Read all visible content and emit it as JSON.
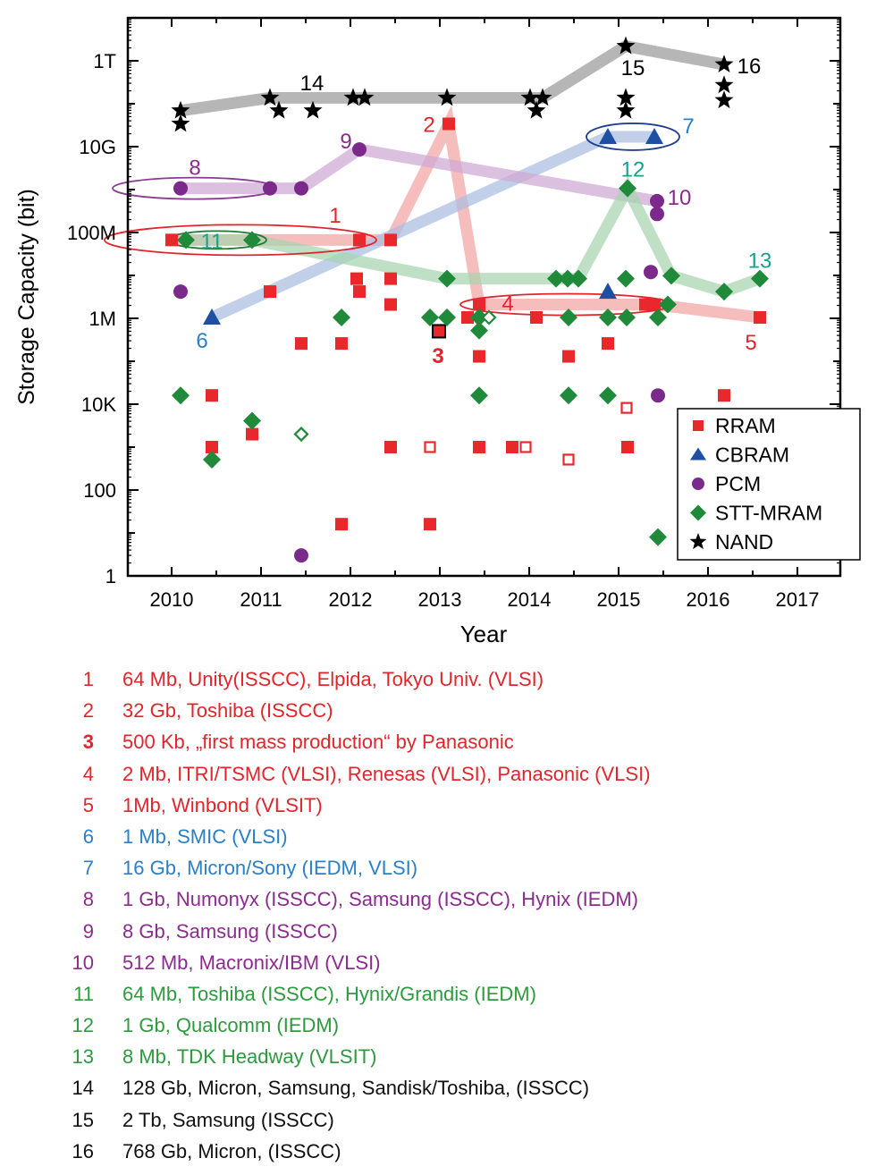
{
  "chart_data": {
    "type": "scatter",
    "xlabel": "Year",
    "ylabel": "Storage Capacity (bit)",
    "x_ticks": [
      "2010",
      "2011",
      "2012",
      "2013",
      "2014",
      "2015",
      "2016",
      "2017"
    ],
    "y_ticks": [
      {
        "v": 1,
        "label": "1"
      },
      {
        "v": 100,
        "label": "100"
      },
      {
        "v": 10000.0,
        "label": "10K"
      },
      {
        "v": 1000000.0,
        "label": "1M"
      },
      {
        "v": 100000000.0,
        "label": "100M"
      },
      {
        "v": 10000000000.0,
        "label": "10G"
      },
      {
        "v": 1000000000000.0,
        "label": "1T"
      }
    ],
    "xlim": [
      2009.53,
      2017.48
    ],
    "ylim": [
      1,
      11000000000000.0
    ],
    "y_scale": "log",
    "grid": false,
    "legend_position": "bottom-right",
    "series": [
      {
        "name": "RRAM",
        "marker": "square",
        "color": "#e8282b",
        "trend_color": "#f2a3a3",
        "points": [
          [
            2010.0,
            67000000.0
          ],
          [
            2012.1,
            67000000.0
          ],
          [
            2012.45,
            67000000.0
          ],
          [
            2013.1,
            34000000000.0
          ],
          [
            2011.1,
            4200000.0
          ],
          [
            2012.07,
            8400000.0
          ],
          [
            2012.1,
            4200000.0
          ],
          [
            2012.45,
            8400000.0
          ],
          [
            2012.45,
            2100000.0
          ],
          [
            2013.44,
            2100000.0
          ],
          [
            2013.31,
            1050000.0
          ],
          [
            2011.45,
            260000.0
          ],
          [
            2011.9,
            260000.0
          ],
          [
            2013.44,
            130000.0
          ],
          [
            2010.45,
            16000.0
          ],
          [
            2010.9,
            2000.0
          ],
          [
            2010.45,
            1000.0
          ],
          [
            2012.45,
            1000.0
          ],
          [
            2013.44,
            1000.0
          ],
          [
            2011.9,
            16
          ],
          [
            2012.89,
            16
          ],
          [
            2015.3,
            2100000.0
          ],
          [
            2015.4,
            2100000.0
          ],
          [
            2016.58,
            1050000.0
          ],
          [
            2014.08,
            1050000.0
          ],
          [
            2014.88,
            260000.0
          ],
          [
            2014.44,
            130000.0
          ],
          [
            2016.18,
            16000.0
          ],
          [
            2013.81,
            1000.0
          ],
          [
            2015.1,
            1000.0
          ]
        ],
        "open_points": [
          [
            2012.89,
            1000.0
          ],
          [
            2015.09,
            8200.0
          ],
          [
            2013.96,
            1000.0
          ],
          [
            2014.44,
            512
          ]
        ],
        "highlight_points": [
          [
            2012.99,
            500000.0
          ]
        ],
        "trend": [
          [
            2010.0,
            67000000.0
          ],
          [
            2012.45,
            67000000.0
          ],
          [
            2013.1,
            34000000000.0
          ],
          [
            2013.44,
            2100000.0
          ],
          [
            2015.4,
            2100000.0
          ],
          [
            2016.58,
            1050000.0
          ]
        ]
      },
      {
        "name": "CBRAM",
        "marker": "triangle",
        "color": "#1f4fa3",
        "trend_color": "#a9bde0",
        "points": [
          [
            2010.45,
            1050000.0
          ],
          [
            2014.88,
            17000000000.0
          ],
          [
            2015.4,
            17000000000.0
          ],
          [
            2014.88,
            4200000.0
          ]
        ],
        "open_points": [],
        "highlight_points": [],
        "trend": [
          [
            2010.45,
            1050000.0
          ],
          [
            2014.88,
            17000000000.0
          ],
          [
            2015.4,
            17000000000.0
          ]
        ]
      },
      {
        "name": "PCM",
        "marker": "circle",
        "color": "#7b2a8c",
        "trend_color": "#cfa8d4",
        "points": [
          [
            2010.1,
            1070000000.0
          ],
          [
            2011.1,
            1070000000.0
          ],
          [
            2011.45,
            1070000000.0
          ],
          [
            2012.1,
            8600000000.0
          ],
          [
            2010.1,
            4200000.0
          ],
          [
            2015.43,
            540000000.0
          ],
          [
            2015.43,
            270000000.0
          ],
          [
            2015.36,
            12000000.0
          ],
          [
            2015.44,
            16000.0
          ],
          [
            2011.45,
            3
          ]
        ],
        "open_points": [],
        "highlight_points": [],
        "trend": [
          [
            2010.1,
            1070000000.0
          ],
          [
            2011.45,
            1070000000.0
          ],
          [
            2012.1,
            8600000000.0
          ],
          [
            2015.43,
            540000000.0
          ]
        ]
      },
      {
        "name": "STT-MRAM",
        "marker": "diamond",
        "color": "#1e8a3a",
        "trend_color": "#a6d4ae",
        "points": [
          [
            2010.16,
            67000000.0
          ],
          [
            2010.9,
            67000000.0
          ],
          [
            2013.08,
            8400000.0
          ],
          [
            2014.3,
            8400000.0
          ],
          [
            2014.43,
            8400000.0
          ],
          [
            2014.55,
            8400000.0
          ],
          [
            2015.1,
            1070000000.0
          ],
          [
            2015.08,
            8400000.0
          ],
          [
            2015.59,
            9800000.0
          ],
          [
            2016.18,
            4200000.0
          ],
          [
            2016.58,
            8400000.0
          ],
          [
            2011.9,
            1050000.0
          ],
          [
            2012.89,
            1050000.0
          ],
          [
            2013.08,
            1050000.0
          ],
          [
            2013.44,
            1050000.0
          ],
          [
            2013.44,
            520000.0
          ],
          [
            2010.1,
            16000.0
          ],
          [
            2013.44,
            16000.0
          ],
          [
            2010.9,
            4100.0
          ],
          [
            2010.45,
            512
          ],
          [
            2014.44,
            1050000.0
          ],
          [
            2014.88,
            1050000.0
          ],
          [
            2015.09,
            1050000.0
          ],
          [
            2015.44,
            1050000.0
          ],
          [
            2015.55,
            2100000.0
          ],
          [
            2014.44,
            16000.0
          ],
          [
            2014.88,
            16000.0
          ],
          [
            2015.44,
            8
          ]
        ],
        "open_points": [
          [
            2013.55,
            1050000.0
          ],
          [
            2011.45,
            2000.0
          ]
        ],
        "highlight_points": [],
        "trend": [
          [
            2010.16,
            67000000.0
          ],
          [
            2010.9,
            67000000.0
          ],
          [
            2013.08,
            8400000.0
          ],
          [
            2014.55,
            8400000.0
          ],
          [
            2015.1,
            1070000000.0
          ],
          [
            2015.59,
            9800000.0
          ],
          [
            2016.18,
            4200000.0
          ],
          [
            2016.58,
            8400000.0
          ]
        ]
      },
      {
        "name": "NAND",
        "marker": "star",
        "color": "#000000",
        "trend_color": "#9a9a9a",
        "points": [
          [
            2010.1,
            69000000000.0
          ],
          [
            2010.1,
            34000000000.0
          ],
          [
            2011.1,
            137000000000.0
          ],
          [
            2011.2,
            69000000000.0
          ],
          [
            2011.58,
            69000000000.0
          ],
          [
            2012.03,
            137000000000.0
          ],
          [
            2012.16,
            137000000000.0
          ],
          [
            2013.08,
            137000000000.0
          ],
          [
            2014.01,
            137000000000.0
          ],
          [
            2014.15,
            137000000000.0
          ],
          [
            2014.08,
            69000000000.0
          ],
          [
            2015.08,
            2200000000000.0
          ],
          [
            2015.08,
            137000000000.0
          ],
          [
            2015.08,
            69000000000.0
          ],
          [
            2016.18,
            820000000000.0
          ],
          [
            2016.18,
            270000000000.0
          ],
          [
            2016.18,
            120000000000.0
          ]
        ],
        "open_points": [],
        "highlight_points": [],
        "trend": [
          [
            2010.1,
            69000000000.0
          ],
          [
            2011.1,
            137000000000.0
          ],
          [
            2014.15,
            137000000000.0
          ],
          [
            2015.08,
            2200000000000.0
          ],
          [
            2016.18,
            820000000000.0
          ]
        ]
      }
    ],
    "ellipses": [
      {
        "label": "8",
        "x_from": 2009.34,
        "x_to": 2011.17,
        "y": 1070000000.0,
        "color": "#8c3a96"
      },
      {
        "label": "1",
        "x_from": 2009.25,
        "x_to": 2012.29,
        "y": 67000000.0,
        "color": "#e0252b"
      },
      {
        "label": "11",
        "x_from": 2009.96,
        "x_to": 2011.06,
        "y": 67000000.0,
        "color": "#1e7a35"
      },
      {
        "label": "7",
        "x_from": 2014.64,
        "x_to": 2015.68,
        "y": 17000000000.0,
        "color": "#1f3f8f"
      },
      {
        "label": "4",
        "x_from": 2013.23,
        "x_to": 2015.61,
        "y": 2100000.0,
        "color": "#e0252b"
      }
    ],
    "annotations": [
      {
        "text": "1",
        "x": 2011.83,
        "y": 260000000.0,
        "color": "#e0252b",
        "bold": false
      },
      {
        "text": "2",
        "x": 2012.88,
        "y": 34000000000.0,
        "color": "#e0252b",
        "bold": false
      },
      {
        "text": "3",
        "x": 2012.98,
        "y": 140000.0,
        "color": "#e0252b",
        "bold": true
      },
      {
        "text": "4",
        "x": 2013.76,
        "y": 2300000.0,
        "color": "#e0252b",
        "bold": false
      },
      {
        "text": "5",
        "x": 2016.48,
        "y": 290000.0,
        "color": "#e0252b",
        "bold": false
      },
      {
        "text": "6",
        "x": 2010.34,
        "y": 320000.0,
        "color": "#2a7fc6",
        "bold": false
      },
      {
        "text": "7",
        "x": 2015.78,
        "y": 32000000000.0,
        "color": "#2a7fc6",
        "bold": false
      },
      {
        "text": "8",
        "x": 2010.26,
        "y": 3400000000.0,
        "color": "#8c2b8f",
        "bold": false
      },
      {
        "text": "9",
        "x": 2011.95,
        "y": 14000000000.0,
        "color": "#8c2b8f",
        "bold": false
      },
      {
        "text": "10",
        "x": 2015.68,
        "y": 680000000.0,
        "color": "#8c2b8f",
        "bold": false
      },
      {
        "text": "11",
        "x": 2010.45,
        "y": 65000000.0,
        "color": "#17a08e",
        "bold": false
      },
      {
        "text": "12",
        "x": 2015.16,
        "y": 3100000000.0,
        "color": "#17a08e",
        "bold": false
      },
      {
        "text": "13",
        "x": 2016.58,
        "y": 23000000.0,
        "color": "#17a08e",
        "bold": false
      },
      {
        "text": "14",
        "x": 2011.57,
        "y": 320000000000.0,
        "color": "#000000",
        "bold": false
      },
      {
        "text": "15",
        "x": 2015.16,
        "y": 710000000000.0,
        "color": "#000000",
        "bold": false
      },
      {
        "text": "16",
        "x": 2016.46,
        "y": 780000000000.0,
        "color": "#000000",
        "bold": false
      }
    ]
  },
  "notes": [
    {
      "num": "1",
      "text": "64 Mb, Unity(ISSCC), Elpida, Tokyo Univ. (VLSI)",
      "color": "#e0252b",
      "bold": false
    },
    {
      "num": "2",
      "text": "32 Gb, Toshiba (ISSCC)",
      "color": "#e0252b",
      "bold": false
    },
    {
      "num": "3",
      "text": "500 Kb, „first mass production“ by Panasonic",
      "color": "#e0252b",
      "bold": true
    },
    {
      "num": "4",
      "text": "2 Mb, ITRI/TSMC (VLSI), Renesas (VLSI), Panasonic (VLSI)",
      "color": "#e0252b",
      "bold": false
    },
    {
      "num": "5",
      "text": "1Mb, Winbond (VLSIT)",
      "color": "#e0252b",
      "bold": false
    },
    {
      "num": "6",
      "text": "1 Mb, SMIC (VLSI)",
      "color": "#2a7fc6",
      "bold": false
    },
    {
      "num": "7",
      "text": "16 Gb, Micron/Sony (IEDM, VLSI)",
      "color": "#2a7fc6",
      "bold": false
    },
    {
      "num": "8",
      "text": "1 Gb, Numonyx (ISSCC), Samsung (ISSCC), Hynix (IEDM)",
      "color": "#8c2b8f",
      "bold": false
    },
    {
      "num": "9",
      "text": "8 Gb, Samsung (ISSCC)",
      "color": "#8c2b8f",
      "bold": false
    },
    {
      "num": "10",
      "text": "512 Mb, Macronix/IBM (VLSI)",
      "color": "#8c2b8f",
      "bold": false
    },
    {
      "num": "11",
      "text": "64 Mb, Toshiba (ISSCC), Hynix/Grandis (IEDM)",
      "color": "#2d9a3e",
      "bold": false
    },
    {
      "num": "12",
      "text": "1 Gb, Qualcomm (IEDM)",
      "color": "#2d9a3e",
      "bold": false
    },
    {
      "num": "13",
      "text": "8 Mb, TDK Headway (VLSIT)",
      "color": "#2d9a3e",
      "bold": false
    },
    {
      "num": "14",
      "text": "128 Gb, Micron, Samsung, Sandisk/Toshiba, (ISSCC)",
      "color": "#111111",
      "bold": false
    },
    {
      "num": "15",
      "text": "2 Tb, Samsung  (ISSCC)",
      "color": "#111111",
      "bold": false
    },
    {
      "num": "16",
      "text": "768 Gb, Micron, (ISSCC)",
      "color": "#111111",
      "bold": false
    }
  ]
}
